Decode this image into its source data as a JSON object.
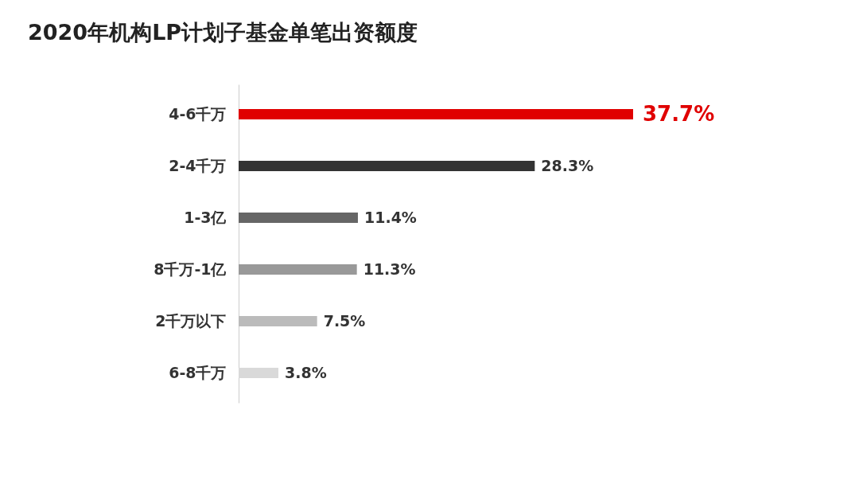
{
  "chart_data": {
    "type": "bar",
    "orientation": "horizontal",
    "title": "2020年机构LP计划子基金单笔出资额度",
    "categories": [
      "4-6千万",
      "2-4千万",
      "1-3亿",
      "8千万-1亿",
      "2千万以下",
      "6-8千万"
    ],
    "values": [
      37.7,
      28.3,
      11.4,
      11.3,
      7.5,
      3.8
    ],
    "colors": [
      "#e00000",
      "#333333",
      "#666666",
      "#999999",
      "#bbbbbb",
      "#d9d9d9"
    ],
    "value_labels": [
      "37.7%",
      "28.3%",
      "11.4%",
      "11.3%",
      "7.5%",
      "3.8%"
    ]
  }
}
